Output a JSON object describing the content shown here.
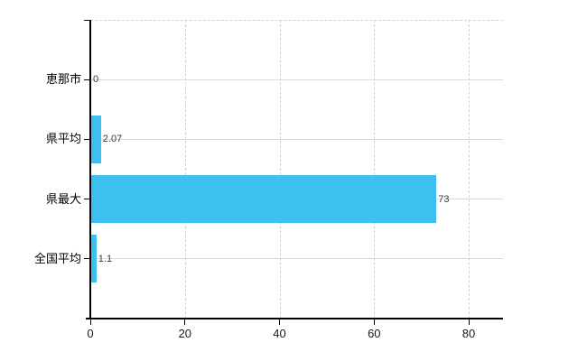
{
  "chart_data": {
    "type": "bar",
    "orientation": "horizontal",
    "title": "",
    "categories": [
      "恵那市",
      "県平均",
      "県最大",
      "全国平均"
    ],
    "values": [
      0,
      2.07,
      73,
      1.1
    ],
    "value_labels": [
      "0",
      "2.07",
      "73",
      "1.1"
    ],
    "x_ticks": [
      0,
      20,
      40,
      60,
      80
    ],
    "xlim": [
      0,
      87
    ],
    "legend_position": "none",
    "grid": {
      "vertical_style": "dashed",
      "horizontal_style": "solid",
      "plot_top_border_style": "dashed"
    },
    "colors": {
      "bar": "#3EC1F0",
      "axis": "#000000",
      "gridline_vertical": "#D2D2D2",
      "gridline_horizontal": "#DADADA",
      "value_label": "#3A3A3A",
      "tick_label": "#1A1A1A"
    }
  }
}
